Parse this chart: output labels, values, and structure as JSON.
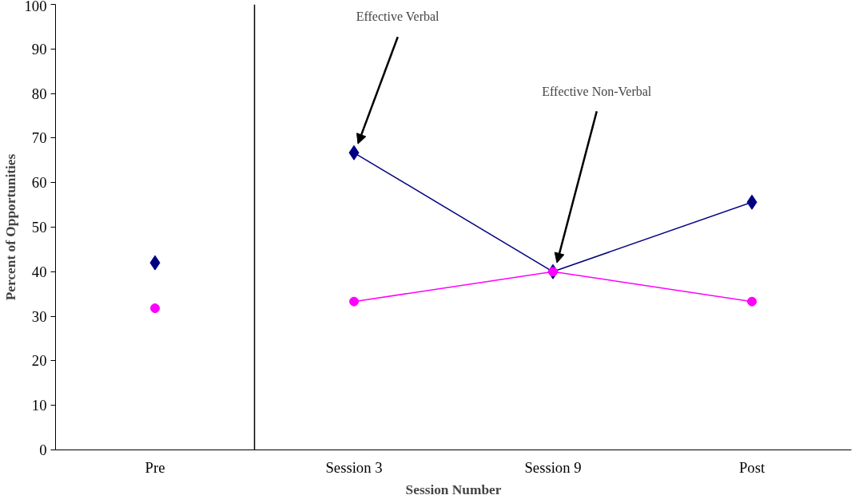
{
  "chart_data": {
    "type": "line",
    "xlabel": "Session Number",
    "ylabel": "Percent of Opportunities",
    "categories": [
      "Pre",
      "Session 3",
      "Session 9",
      "Post"
    ],
    "series": [
      {
        "color": "#000080",
        "marker": "diamond",
        "values": [
          null,
          66.7,
          40,
          55.6
        ]
      },
      {
        "color": "#ff00ff",
        "marker": "circle",
        "values": [
          null,
          33.3,
          40,
          33.3
        ]
      },
      {
        "type": "scatter",
        "color": "#000080",
        "marker": "diamond",
        "values": [
          42,
          null,
          null,
          null
        ]
      },
      {
        "type": "scatter",
        "color": "#ff00ff",
        "marker": "circle",
        "values": [
          31.8,
          null,
          null,
          null
        ]
      }
    ],
    "ylim": [
      0,
      100
    ],
    "yticks": [
      0,
      10,
      20,
      30,
      40,
      50,
      60,
      70,
      80,
      90,
      100
    ],
    "annotations": [
      "Effective Verbal",
      "Effective Non-Verbal"
    ],
    "grid": false
  }
}
